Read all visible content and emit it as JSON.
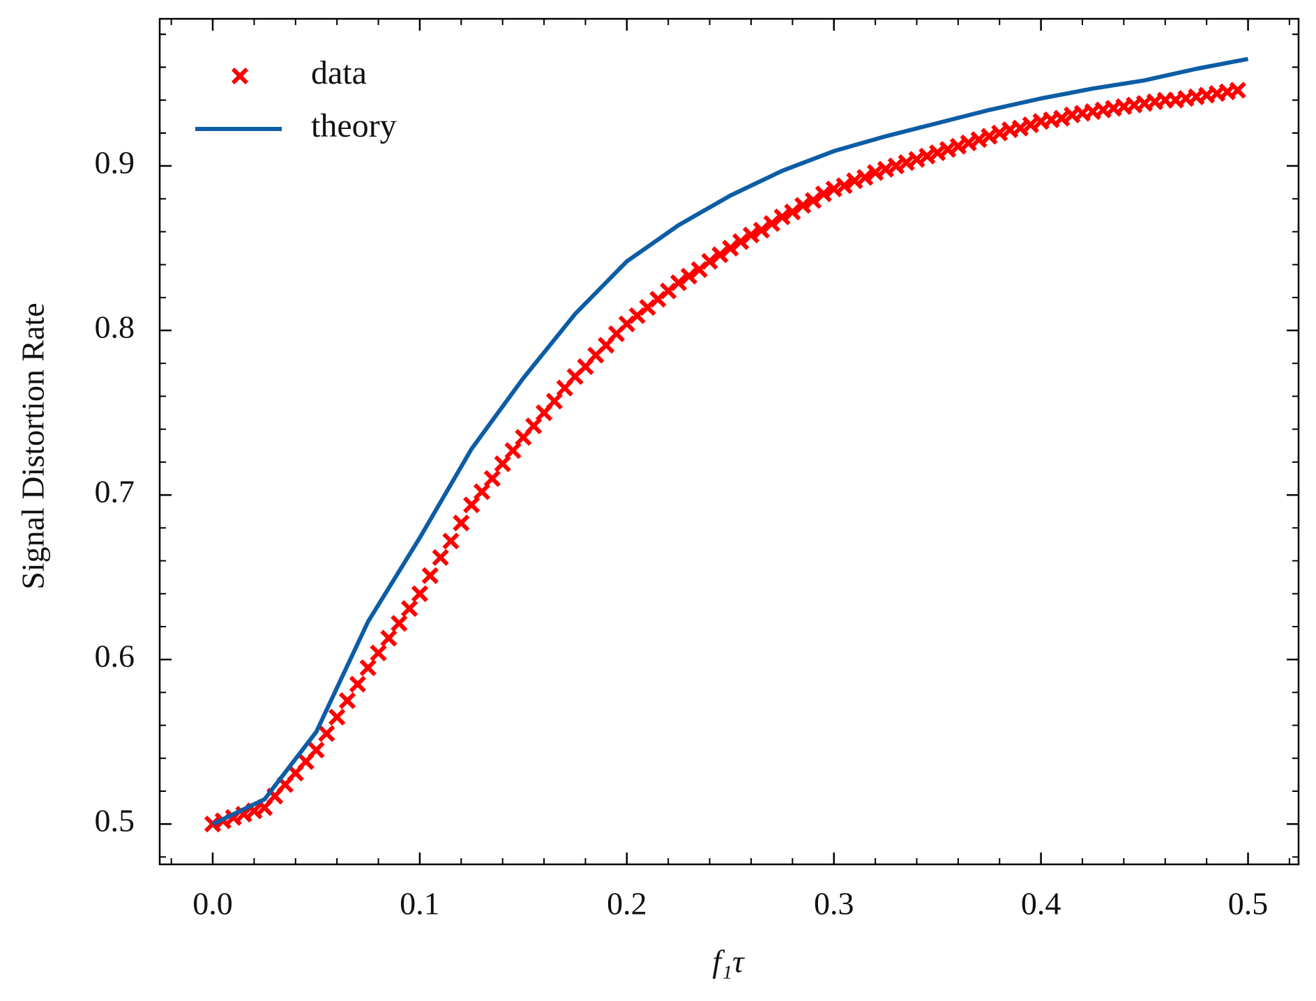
{
  "chart_data": {
    "type": "scatter",
    "xlabel": "f₁τ",
    "ylabel": "Signal Distortion Rate",
    "xlim": [
      -0.0256,
      0.5244
    ],
    "ylim": [
      0.4755,
      0.9894
    ],
    "xticks": [
      {
        "value": 0,
        "label": "0.0"
      },
      0.1,
      0.2,
      0.3,
      0.4,
      0.5
    ],
    "yticks": [
      0.5,
      0.6,
      0.7,
      0.8,
      0.9
    ],
    "minor_divisions": 5,
    "legend": "upper left",
    "series": [
      {
        "name": "data",
        "type": "scatter",
        "color": "#ff0000",
        "x": [
          0,
          0.005,
          0.01,
          0.015,
          0.02,
          0.025,
          0.03,
          0.035,
          0.04,
          0.045,
          0.05,
          0.055,
          0.06,
          0.065,
          0.07,
          0.075,
          0.08,
          0.085,
          0.09,
          0.095,
          0.1,
          0.105,
          0.11,
          0.115,
          0.12,
          0.125,
          0.13,
          0.135,
          0.14,
          0.145,
          0.15,
          0.155,
          0.16,
          0.165,
          0.17,
          0.175,
          0.18,
          0.185,
          0.19,
          0.195,
          0.2,
          0.205,
          0.21,
          0.215,
          0.22,
          0.225,
          0.23,
          0.235,
          0.24,
          0.245,
          0.25,
          0.255,
          0.26,
          0.265,
          0.27,
          0.275,
          0.28,
          0.285,
          0.29,
          0.295,
          0.3,
          0.305,
          0.31,
          0.315,
          0.32,
          0.325,
          0.33,
          0.335,
          0.34,
          0.345,
          0.35,
          0.355,
          0.36,
          0.365,
          0.37,
          0.375,
          0.38,
          0.385,
          0.39,
          0.395,
          0.4,
          0.405,
          0.41,
          0.415,
          0.42,
          0.425,
          0.43,
          0.435,
          0.44,
          0.445,
          0.45,
          0.455,
          0.46,
          0.465,
          0.47,
          0.475,
          0.48,
          0.485,
          0.49,
          0.495
        ],
        "values": [
          0.5,
          0.502,
          0.504,
          0.506,
          0.508,
          0.51,
          0.517,
          0.524,
          0.531,
          0.538,
          0.545,
          0.555,
          0.565,
          0.575,
          0.585,
          0.595,
          0.604,
          0.613,
          0.622,
          0.631,
          0.64,
          0.651,
          0.662,
          0.672,
          0.683,
          0.694,
          0.702,
          0.71,
          0.719,
          0.727,
          0.735,
          0.742,
          0.75,
          0.757,
          0.765,
          0.772,
          0.778,
          0.785,
          0.791,
          0.798,
          0.804,
          0.809,
          0.814,
          0.819,
          0.824,
          0.829,
          0.833,
          0.837,
          0.842,
          0.846,
          0.85,
          0.854,
          0.858,
          0.861,
          0.865,
          0.869,
          0.872,
          0.876,
          0.879,
          0.883,
          0.886,
          0.888,
          0.891,
          0.893,
          0.896,
          0.898,
          0.9,
          0.902,
          0.904,
          0.906,
          0.908,
          0.91,
          0.912,
          0.914,
          0.916,
          0.918,
          0.92,
          0.922,
          0.923,
          0.925,
          0.927,
          0.928,
          0.929,
          0.931,
          0.932,
          0.933,
          0.934,
          0.935,
          0.936,
          0.937,
          0.938,
          0.939,
          0.94,
          0.94,
          0.941,
          0.942,
          0.943,
          0.944,
          0.945,
          0.946
        ]
      },
      {
        "name": "theory",
        "type": "line",
        "color": "#0c5da5",
        "x": [
          0,
          0.025,
          0.05,
          0.075,
          0.1,
          0.125,
          0.15,
          0.175,
          0.2,
          0.225,
          0.25,
          0.275,
          0.3,
          0.325,
          0.35,
          0.375,
          0.4,
          0.425,
          0.45,
          0.475,
          0.5
        ],
        "values": [
          0.5,
          0.515,
          0.556,
          0.623,
          0.674,
          0.728,
          0.771,
          0.81,
          0.842,
          0.864,
          0.882,
          0.897,
          0.909,
          0.918,
          0.926,
          0.934,
          0.941,
          0.947,
          0.952,
          0.959,
          0.965
        ]
      }
    ]
  }
}
